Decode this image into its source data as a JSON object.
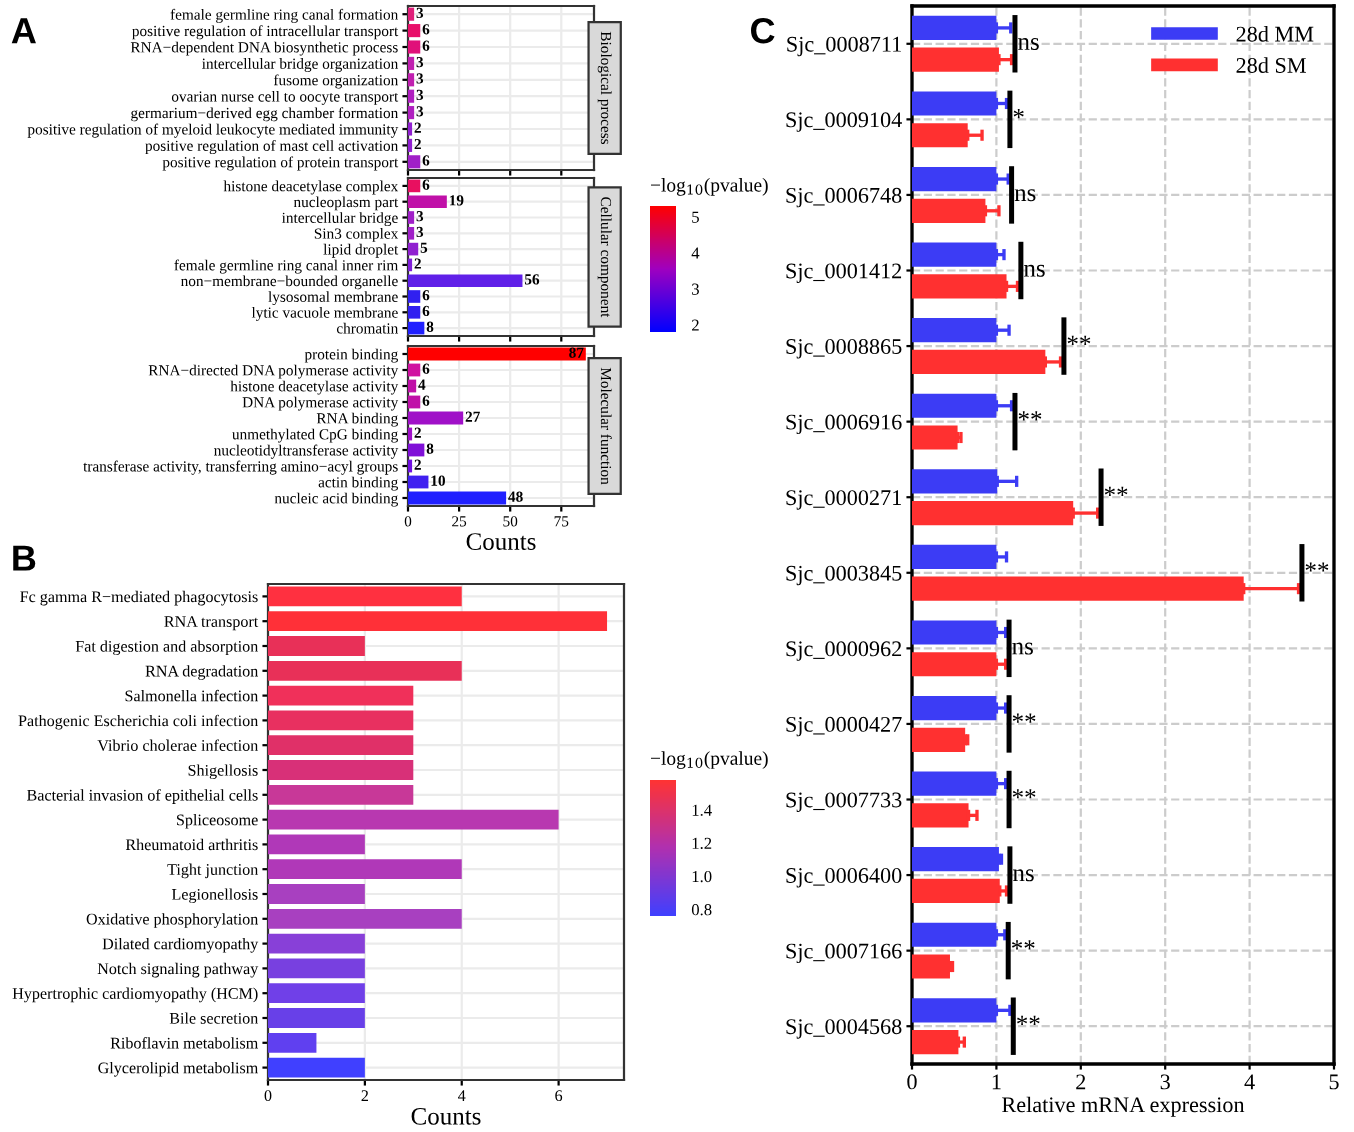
{
  "chart_data": [
    {
      "type": "bar",
      "orientation": "horizontal",
      "title": "Biological process",
      "annotations": [
        "A"
      ],
      "tick_labels": "y",
      "grid": true,
      "data_labels": true,
      "categories": [
        "female germline ring canal formation",
        "positive regulation of intracellular transport",
        "RNA−dependent DNA biosynthetic process",
        "intercellular bridge organization",
        "fusome organization",
        "ovarian nurse cell to oocyte transport",
        "germarium−derived egg chamber formation",
        "positive regulation of myeloid leukocyte mediated immunity",
        "positive regulation of mast cell activation",
        "positive regulation of protein transport"
      ],
      "values": [
        3,
        6,
        6,
        3,
        3,
        3,
        3,
        2,
        2,
        6
      ],
      "colors": [
        "#e0207a",
        "#e8106a",
        "#e0107a",
        "#c020b0",
        "#c020b0",
        "#b020c0",
        "#b020c0",
        "#9020d0",
        "#9020d0",
        "#a020c8"
      ],
      "xlim": [
        0,
        91
      ],
      "xticks": [
        0,
        25,
        50,
        75
      ]
    },
    {
      "type": "bar",
      "orientation": "horizontal",
      "title": "Cellular component",
      "tick_labels": "y",
      "grid": true,
      "data_labels": true,
      "categories": [
        "histone deacetylase complex",
        "nucleoplasm part",
        "intercellular bridge",
        "Sin3 complex",
        "lipid droplet",
        "female germline ring canal inner rim",
        "non−membrane−bounded organelle",
        "lysosomal membrane",
        "lytic vacuole membrane",
        "chromatin"
      ],
      "values": [
        6,
        19,
        3,
        3,
        5,
        2,
        56,
        6,
        6,
        8
      ],
      "colors": [
        "#e81060",
        "#c010a8",
        "#a020c8",
        "#a020c8",
        "#9020d0",
        "#8020d8",
        "#6020e8",
        "#3020f0",
        "#3020f0",
        "#2020ff"
      ],
      "xlim": [
        0,
        91
      ],
      "xticks": [
        0,
        25,
        50,
        75
      ],
      "clabel": "−log$_{10}$(pvalue)",
      "clim": [
        1.8,
        5.3
      ],
      "cticks": [
        2,
        3,
        4,
        5
      ]
    },
    {
      "type": "bar",
      "orientation": "horizontal",
      "title": "Molecular function",
      "xlabel": "Counts",
      "grid": true,
      "data_labels": true,
      "categories": [
        "protein binding",
        "RNA−directed DNA polymerase activity",
        "histone deacetylase activity",
        "DNA polymerase activity",
        "RNA binding",
        "unmethylated CpG binding",
        "nucleotidyltransferase activity",
        "transferase activity, transferring amino−acyl groups",
        "actin binding",
        "nucleic acid binding"
      ],
      "values": [
        87,
        6,
        4,
        6,
        27,
        2,
        8,
        2,
        10,
        48
      ],
      "colors": [
        "#ff0000",
        "#d010a0",
        "#c010a8",
        "#c010a8",
        "#a010c8",
        "#a010c8",
        "#8010d8",
        "#7010e0",
        "#4020f0",
        "#2020ff"
      ],
      "xlim": [
        0,
        91
      ],
      "xticks": [
        0,
        25,
        50,
        75
      ]
    },
    {
      "type": "bar",
      "orientation": "horizontal",
      "xlabel": "Counts",
      "annotations": [
        "B"
      ],
      "grid": true,
      "categories": [
        "Fc gamma R−mediated phagocytosis",
        "RNA transport",
        "Fat digestion and absorption",
        "RNA degradation",
        "Salmonella infection",
        "Pathogenic Escherichia coli infection",
        "Vibrio cholerae infection",
        "Shigellosis",
        "Bacterial invasion of epithelial cells",
        "Spliceosome",
        "Rheumatoid arthritis",
        "Tight junction",
        "Legionellosis",
        "Oxidative phosphorylation",
        "Dilated cardiomyopathy",
        "Notch signaling pathway",
        "Hypertrophic cardiomyopathy (HCM)",
        "Bile secretion",
        "Riboflavin metabolism",
        "Glycerolipid metabolism"
      ],
      "values": [
        4,
        7,
        2,
        4,
        3,
        3,
        3,
        3,
        3,
        6,
        2,
        4,
        2,
        4,
        2,
        2,
        2,
        2,
        1,
        2
      ],
      "colors": [
        "#ff3040",
        "#ff3038",
        "#e83058",
        "#e83058",
        "#f0305a",
        "#e83060",
        "#e03068",
        "#d83078",
        "#c83898",
        "#b838b0",
        "#b038b8",
        "#b038b8",
        "#a840c0",
        "#a840c0",
        "#8840d8",
        "#7840e0",
        "#7040e8",
        "#6840e8",
        "#6040f0",
        "#4040ff"
      ],
      "xlim": [
        0,
        7.35
      ],
      "xticks": [
        0,
        2,
        4,
        6
      ],
      "clabel": "−log$_{10}$(pvalue)",
      "clim": [
        0.76,
        1.58
      ],
      "cticks": [
        {
          "value": 0.8,
          "label": "0.8"
        },
        {
          "value": 1.0,
          "label": "1.0"
        },
        {
          "value": 1.2,
          "label": "1.2"
        },
        {
          "value": 1.4,
          "label": "1.4"
        }
      ]
    },
    {
      "type": "bar",
      "orientation": "horizontal",
      "xlabel": "Relative mRNA expression",
      "grid": true,
      "line_style": "dashed",
      "legend": "top right",
      "categories": [
        "Sjc_0008711",
        "Sjc_0009104",
        "Sjc_0006748",
        "Sjc_0001412",
        "Sjc_0008865",
        "Sjc_0006916",
        "Sjc_0000271",
        "Sjc_0003845",
        "Sjc_0000962",
        "Sjc_0000427",
        "Sjc_0007733",
        "Sjc_0006400",
        "Sjc_0007166",
        "Sjc_0004568"
      ],
      "series": [
        {
          "name": "28d MM",
          "color": "#3c3cf5",
          "values": [
            1.0,
            1.0,
            1.0,
            1.0,
            1.0,
            1.0,
            1.01,
            1.0,
            1.0,
            1.0,
            1.0,
            1.03,
            1.0,
            1.0
          ],
          "errors": [
            0.17,
            0.12,
            0.14,
            0.09,
            0.15,
            0.18,
            0.23,
            0.12,
            0.11,
            0.11,
            0.11,
            0.03,
            0.1,
            0.16
          ]
        },
        {
          "name": "28d SM",
          "color": "#ff3030",
          "values": [
            1.03,
            0.66,
            0.87,
            1.12,
            1.58,
            0.54,
            1.91,
            3.93,
            1.0,
            0.63,
            0.67,
            1.04,
            0.45,
            0.55
          ],
          "errors": [
            0.15,
            0.17,
            0.16,
            0.13,
            0.18,
            0.04,
            0.29,
            0.65,
            0.11,
            0.03,
            0.1,
            0.08,
            0.03,
            0.07
          ]
        }
      ],
      "xlim": [
        0,
        5
      ],
      "xticks": [
        0,
        1,
        2,
        3,
        4,
        5
      ],
      "annotations": [
        "C",
        "ns",
        "*",
        "ns",
        "ns",
        "**",
        "**",
        "**",
        "**",
        "ns",
        "**",
        "**",
        "ns",
        "**",
        "**"
      ]
    }
  ]
}
